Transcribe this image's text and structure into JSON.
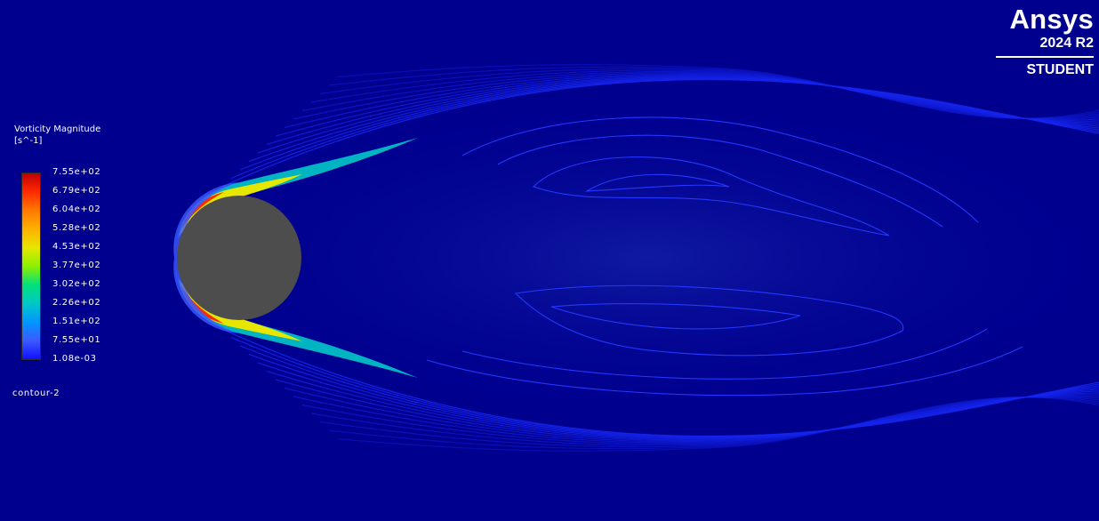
{
  "legend": {
    "title": "Vorticity Magnitude",
    "units": "[s^-1]",
    "tick_labels": [
      "7.55e+02",
      "6.79e+02",
      "6.04e+02",
      "5.28e+02",
      "4.53e+02",
      "3.77e+02",
      "3.02e+02",
      "2.26e+02",
      "1.51e+02",
      "7.55e+01",
      "1.08e-03"
    ],
    "colors": [
      "#c00000",
      "#ff2a00",
      "#ff7a00",
      "#ffb000",
      "#e6e600",
      "#8cf000",
      "#00e07a",
      "#00c8c8",
      "#0096ff",
      "#3c5aff",
      "#1010ff"
    ]
  },
  "contour_name": "contour-2",
  "logo": {
    "brand": "Ansys",
    "version": "2024 R2",
    "edition": "STUDENT"
  },
  "colors": {
    "background": "#00008f",
    "cylinder": "#4d4d4d",
    "contour_line": "#1a2cff"
  }
}
